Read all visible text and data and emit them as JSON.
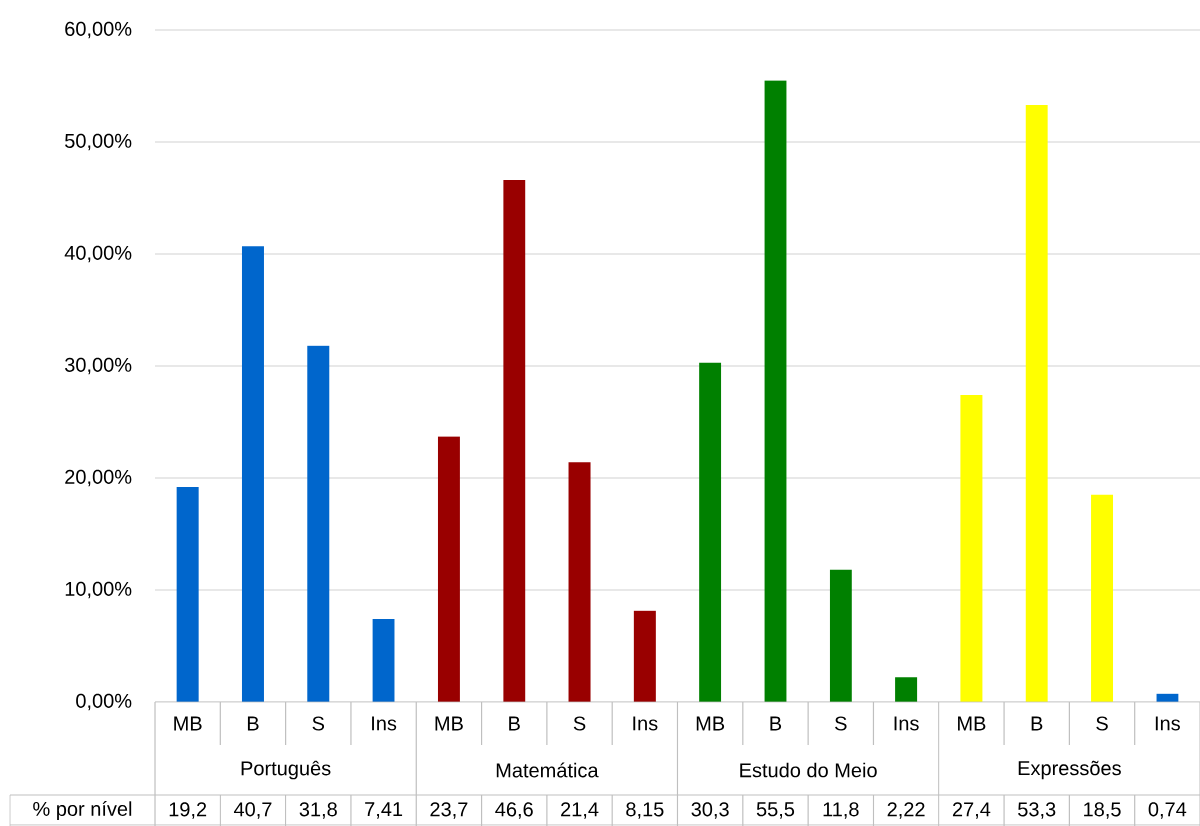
{
  "chart_data": {
    "type": "bar",
    "categories": [
      "MB",
      "B",
      "S",
      "Ins",
      "MB",
      "B",
      "S",
      "Ins",
      "MB",
      "B",
      "S",
      "Ins",
      "MB",
      "B",
      "S",
      "Ins"
    ],
    "values": [
      19.2,
      40.7,
      31.8,
      7.41,
      23.7,
      46.6,
      21.4,
      8.15,
      30.3,
      55.5,
      11.8,
      2.22,
      27.4,
      53.3,
      18.5,
      0.74
    ],
    "colors": [
      "#0066cc",
      "#0066cc",
      "#0066cc",
      "#0066cc",
      "#990000",
      "#990000",
      "#990000",
      "#990000",
      "#008000",
      "#008000",
      "#008000",
      "#008000",
      "#ffff00",
      "#ffff00",
      "#ffff00",
      "#0066cc"
    ],
    "value_labels": [
      "19,2",
      "40,7",
      "31,8",
      "7,41",
      "23,7",
      "46,6",
      "21,4",
      "8,15",
      "30,3",
      "55,5",
      "11,8",
      "2,22",
      "27,4",
      "53,3",
      "18,5",
      "0,74"
    ],
    "annotations": [
      "Português",
      "Matemática",
      "Estudo do Meio",
      "Expressões",
      "% por nível"
    ],
    "ylim": [
      0,
      60
    ],
    "yticks": [
      {
        "value": 0,
        "label": "0,00%"
      },
      {
        "value": 10,
        "label": "10,00%"
      },
      {
        "value": 20,
        "label": "20,00%"
      },
      {
        "value": 30,
        "label": "30,00%"
      },
      {
        "value": 40,
        "label": "40,00%"
      },
      {
        "value": 50,
        "label": "50,00%"
      },
      {
        "value": 60,
        "label": "60,00%"
      }
    ],
    "grid": "y"
  }
}
